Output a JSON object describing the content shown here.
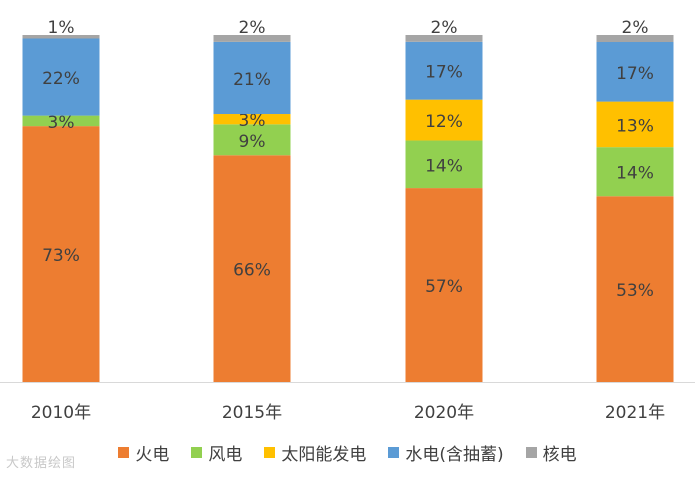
{
  "chart_data": {
    "type": "bar",
    "stacked": true,
    "categories": [
      "2010年",
      "2015年",
      "2020年",
      "2021年"
    ],
    "series": [
      {
        "name": "火电",
        "color": "#ED7D31",
        "values": [
          73,
          66,
          57,
          53
        ],
        "labels": [
          "73%",
          "66%",
          "57%",
          "53%"
        ]
      },
      {
        "name": "风电",
        "color": "#92D050",
        "values": [
          3,
          9,
          14,
          14
        ],
        "labels": [
          "3%",
          "9%",
          "14%",
          "14%"
        ]
      },
      {
        "name": "太阳能发电",
        "color": "#FFC000",
        "values": [
          0,
          3,
          12,
          13
        ],
        "labels": [
          "",
          "3%",
          "12%",
          "13%"
        ]
      },
      {
        "name": "水电(含抽蓄)",
        "color": "#5B9BD5",
        "values": [
          22,
          21,
          17,
          17
        ],
        "labels": [
          "22%",
          "21%",
          "17%",
          "17%"
        ]
      },
      {
        "name": "核电",
        "color": "#A5A5A5",
        "values": [
          1,
          2,
          2,
          2
        ],
        "labels": [
          "1%",
          "2%",
          "2%",
          "2%"
        ]
      }
    ],
    "ylim": [
      0,
      100
    ],
    "legend_position": "bottom",
    "grid": false
  },
  "watermark": "大数据绘图"
}
